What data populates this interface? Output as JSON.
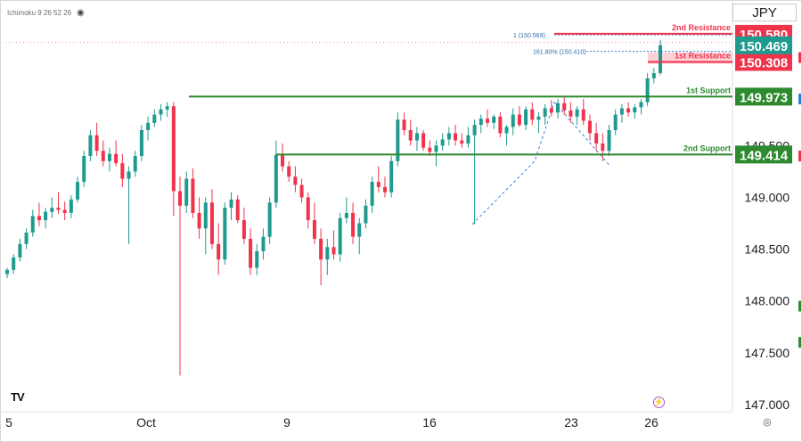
{
  "indicator": {
    "label": "Ichimoku 9 26 52 26",
    "eye_icon": "eye-icon"
  },
  "currency": "JPY",
  "logo": "TV",
  "colors": {
    "up": "#1f9a8e",
    "down": "#f0334b",
    "support": "#2d8a2f",
    "resistance": "#f0334b",
    "last": "#1f9a8e",
    "fib": "#2f7fd9"
  },
  "chart_data": {
    "type": "candlestick",
    "y_ticks": [
      150.5,
      150.0,
      149.5,
      149.0,
      148.5,
      148.0,
      147.5,
      147.0
    ],
    "x_tick_labels": [
      "5",
      "Oct",
      "9",
      "16",
      "23",
      "26"
    ],
    "ylim": [
      147.0,
      150.87
    ],
    "levels": [
      {
        "name": "2nd Resistance",
        "value": 150.58,
        "value_label": "150.580",
        "kind": "resistance"
      },
      {
        "name": "1st Resistance",
        "value": 150.308,
        "value_label": "150.308",
        "kind": "resistance"
      },
      {
        "name": "1st Support",
        "value": 149.973,
        "value_label": "149.973",
        "kind": "support"
      },
      {
        "name": "2nd Support",
        "value": 149.414,
        "value_label": "149.414",
        "kind": "support"
      }
    ],
    "last_price": {
      "value": 150.469,
      "value_label": "150.469"
    },
    "fib_labels": [
      {
        "text": "1 (150.569)",
        "value": 150.569
      },
      {
        "text": "161.80% (150.410)",
        "value": 150.41
      }
    ],
    "fib_lines": [
      [
        [
          530,
          148.74
        ],
        [
          600,
          149.35
        ],
        [
          622,
          149.92
        ]
      ],
      [
        [
          622,
          149.92
        ],
        [
          685,
          149.3
        ]
      ]
    ],
    "candles": [
      [
        148.26,
        148.32,
        148.22,
        148.3
      ],
      [
        148.3,
        148.45,
        148.26,
        148.42
      ],
      [
        148.42,
        148.6,
        148.38,
        148.55
      ],
      [
        148.55,
        148.7,
        148.5,
        148.66
      ],
      [
        148.66,
        148.88,
        148.62,
        148.82
      ],
      [
        148.82,
        148.95,
        148.72,
        148.78
      ],
      [
        148.78,
        148.9,
        148.7,
        148.86
      ],
      [
        148.86,
        149.0,
        148.8,
        148.9
      ],
      [
        148.9,
        149.05,
        148.84,
        148.88
      ],
      [
        148.88,
        148.96,
        148.78,
        148.85
      ],
      [
        148.85,
        149.02,
        148.8,
        148.98
      ],
      [
        148.98,
        149.2,
        148.95,
        149.15
      ],
      [
        149.15,
        149.45,
        149.1,
        149.4
      ],
      [
        149.4,
        149.65,
        149.35,
        149.6
      ],
      [
        149.6,
        149.72,
        149.4,
        149.45
      ],
      [
        149.45,
        149.55,
        149.3,
        149.35
      ],
      [
        149.35,
        149.48,
        149.25,
        149.42
      ],
      [
        149.42,
        149.55,
        149.3,
        149.33
      ],
      [
        149.33,
        149.42,
        149.1,
        149.18
      ],
      [
        149.18,
        149.3,
        148.55,
        149.25
      ],
      [
        149.25,
        149.45,
        149.2,
        149.4
      ],
      [
        149.4,
        149.7,
        149.35,
        149.65
      ],
      [
        149.65,
        149.78,
        149.55,
        149.72
      ],
      [
        149.72,
        149.85,
        149.68,
        149.8
      ],
      [
        149.8,
        149.9,
        149.74,
        149.85
      ],
      [
        149.85,
        149.92,
        149.78,
        149.88
      ],
      [
        149.88,
        149.92,
        148.82,
        149.06
      ],
      [
        149.06,
        149.2,
        147.28,
        148.92
      ],
      [
        148.92,
        149.25,
        148.85,
        149.18
      ],
      [
        149.18,
        149.28,
        148.8,
        148.85
      ],
      [
        148.85,
        149.0,
        148.6,
        148.7
      ],
      [
        148.7,
        149.0,
        148.45,
        148.95
      ],
      [
        148.95,
        149.08,
        148.5,
        148.55
      ],
      [
        148.55,
        148.75,
        148.25,
        148.4
      ],
      [
        148.4,
        148.95,
        148.35,
        148.9
      ],
      [
        148.9,
        149.05,
        148.78,
        148.98
      ],
      [
        148.98,
        149.02,
        148.75,
        148.78
      ],
      [
        148.78,
        148.9,
        148.55,
        148.6
      ],
      [
        148.6,
        148.7,
        148.25,
        148.32
      ],
      [
        148.32,
        148.55,
        148.25,
        148.48
      ],
      [
        148.48,
        148.7,
        148.4,
        148.62
      ],
      [
        148.62,
        149.0,
        148.55,
        148.95
      ],
      [
        148.95,
        149.55,
        148.9,
        149.41
      ],
      [
        149.41,
        149.52,
        149.25,
        149.3
      ],
      [
        149.3,
        149.35,
        149.15,
        149.2
      ],
      [
        149.2,
        149.3,
        149.05,
        149.12
      ],
      [
        149.12,
        149.18,
        148.95,
        149.0
      ],
      [
        149.0,
        149.05,
        148.7,
        148.78
      ],
      [
        148.78,
        148.95,
        148.55,
        148.6
      ],
      [
        148.6,
        148.7,
        148.15,
        148.4
      ],
      [
        148.4,
        148.6,
        148.25,
        148.52
      ],
      [
        148.52,
        148.68,
        148.4,
        148.45
      ],
      [
        148.45,
        148.85,
        148.38,
        148.8
      ],
      [
        148.8,
        149.0,
        148.75,
        148.85
      ],
      [
        148.85,
        148.95,
        148.55,
        148.62
      ],
      [
        148.62,
        148.8,
        148.45,
        148.75
      ],
      [
        148.75,
        148.98,
        148.7,
        148.92
      ],
      [
        148.92,
        149.2,
        148.85,
        149.15
      ],
      [
        149.15,
        149.3,
        149.05,
        149.1
      ],
      [
        149.1,
        149.2,
        149.0,
        149.05
      ],
      [
        149.05,
        149.4,
        149.0,
        149.35
      ],
      [
        149.35,
        149.82,
        149.3,
        149.75
      ],
      [
        149.75,
        149.82,
        149.6,
        149.65
      ],
      [
        149.65,
        149.75,
        149.5,
        149.55
      ],
      [
        149.55,
        149.68,
        149.45,
        149.62
      ],
      [
        149.62,
        149.65,
        149.45,
        149.48
      ],
      [
        149.48,
        149.55,
        149.4,
        149.44
      ],
      [
        149.44,
        149.55,
        149.3,
        149.5
      ],
      [
        149.5,
        149.62,
        149.45,
        149.56
      ],
      [
        149.56,
        149.68,
        149.5,
        149.62
      ],
      [
        149.62,
        149.7,
        149.5,
        149.55
      ],
      [
        149.55,
        149.62,
        149.48,
        149.52
      ],
      [
        149.52,
        149.68,
        149.48,
        149.6
      ],
      [
        149.6,
        149.75,
        148.74,
        149.7
      ],
      [
        149.7,
        149.8,
        149.62,
        149.76
      ],
      [
        149.76,
        149.85,
        149.68,
        149.72
      ],
      [
        149.72,
        149.8,
        149.66,
        149.78
      ],
      [
        149.78,
        149.82,
        149.58,
        149.62
      ],
      [
        149.62,
        149.7,
        149.5,
        149.68
      ],
      [
        149.68,
        149.86,
        149.6,
        149.8
      ],
      [
        149.8,
        149.88,
        149.68,
        149.7
      ],
      [
        149.7,
        149.88,
        149.65,
        149.85
      ],
      [
        149.85,
        149.92,
        149.7,
        149.75
      ],
      [
        149.75,
        149.82,
        149.62,
        149.78
      ],
      [
        149.78,
        149.9,
        149.7,
        149.86
      ],
      [
        149.86,
        149.94,
        149.78,
        149.82
      ],
      [
        149.82,
        149.95,
        149.76,
        149.91
      ],
      [
        149.91,
        149.98,
        149.8,
        149.84
      ],
      [
        149.84,
        149.92,
        149.72,
        149.78
      ],
      [
        149.78,
        149.88,
        149.7,
        149.85
      ],
      [
        149.85,
        149.95,
        149.7,
        149.74
      ],
      [
        149.74,
        149.8,
        149.55,
        149.62
      ],
      [
        149.62,
        149.72,
        149.45,
        149.52
      ],
      [
        149.52,
        149.62,
        149.35,
        149.45
      ],
      [
        149.45,
        149.7,
        149.4,
        149.65
      ],
      [
        149.65,
        149.85,
        149.6,
        149.8
      ],
      [
        149.8,
        149.9,
        149.72,
        149.86
      ],
      [
        149.86,
        149.92,
        149.78,
        149.82
      ],
      [
        149.82,
        149.9,
        149.76,
        149.87
      ],
      [
        149.87,
        149.95,
        149.8,
        149.92
      ],
      [
        149.92,
        150.2,
        149.88,
        150.15
      ],
      [
        150.15,
        150.25,
        150.1,
        150.2
      ],
      [
        150.2,
        150.52,
        150.18,
        150.469
      ]
    ]
  }
}
